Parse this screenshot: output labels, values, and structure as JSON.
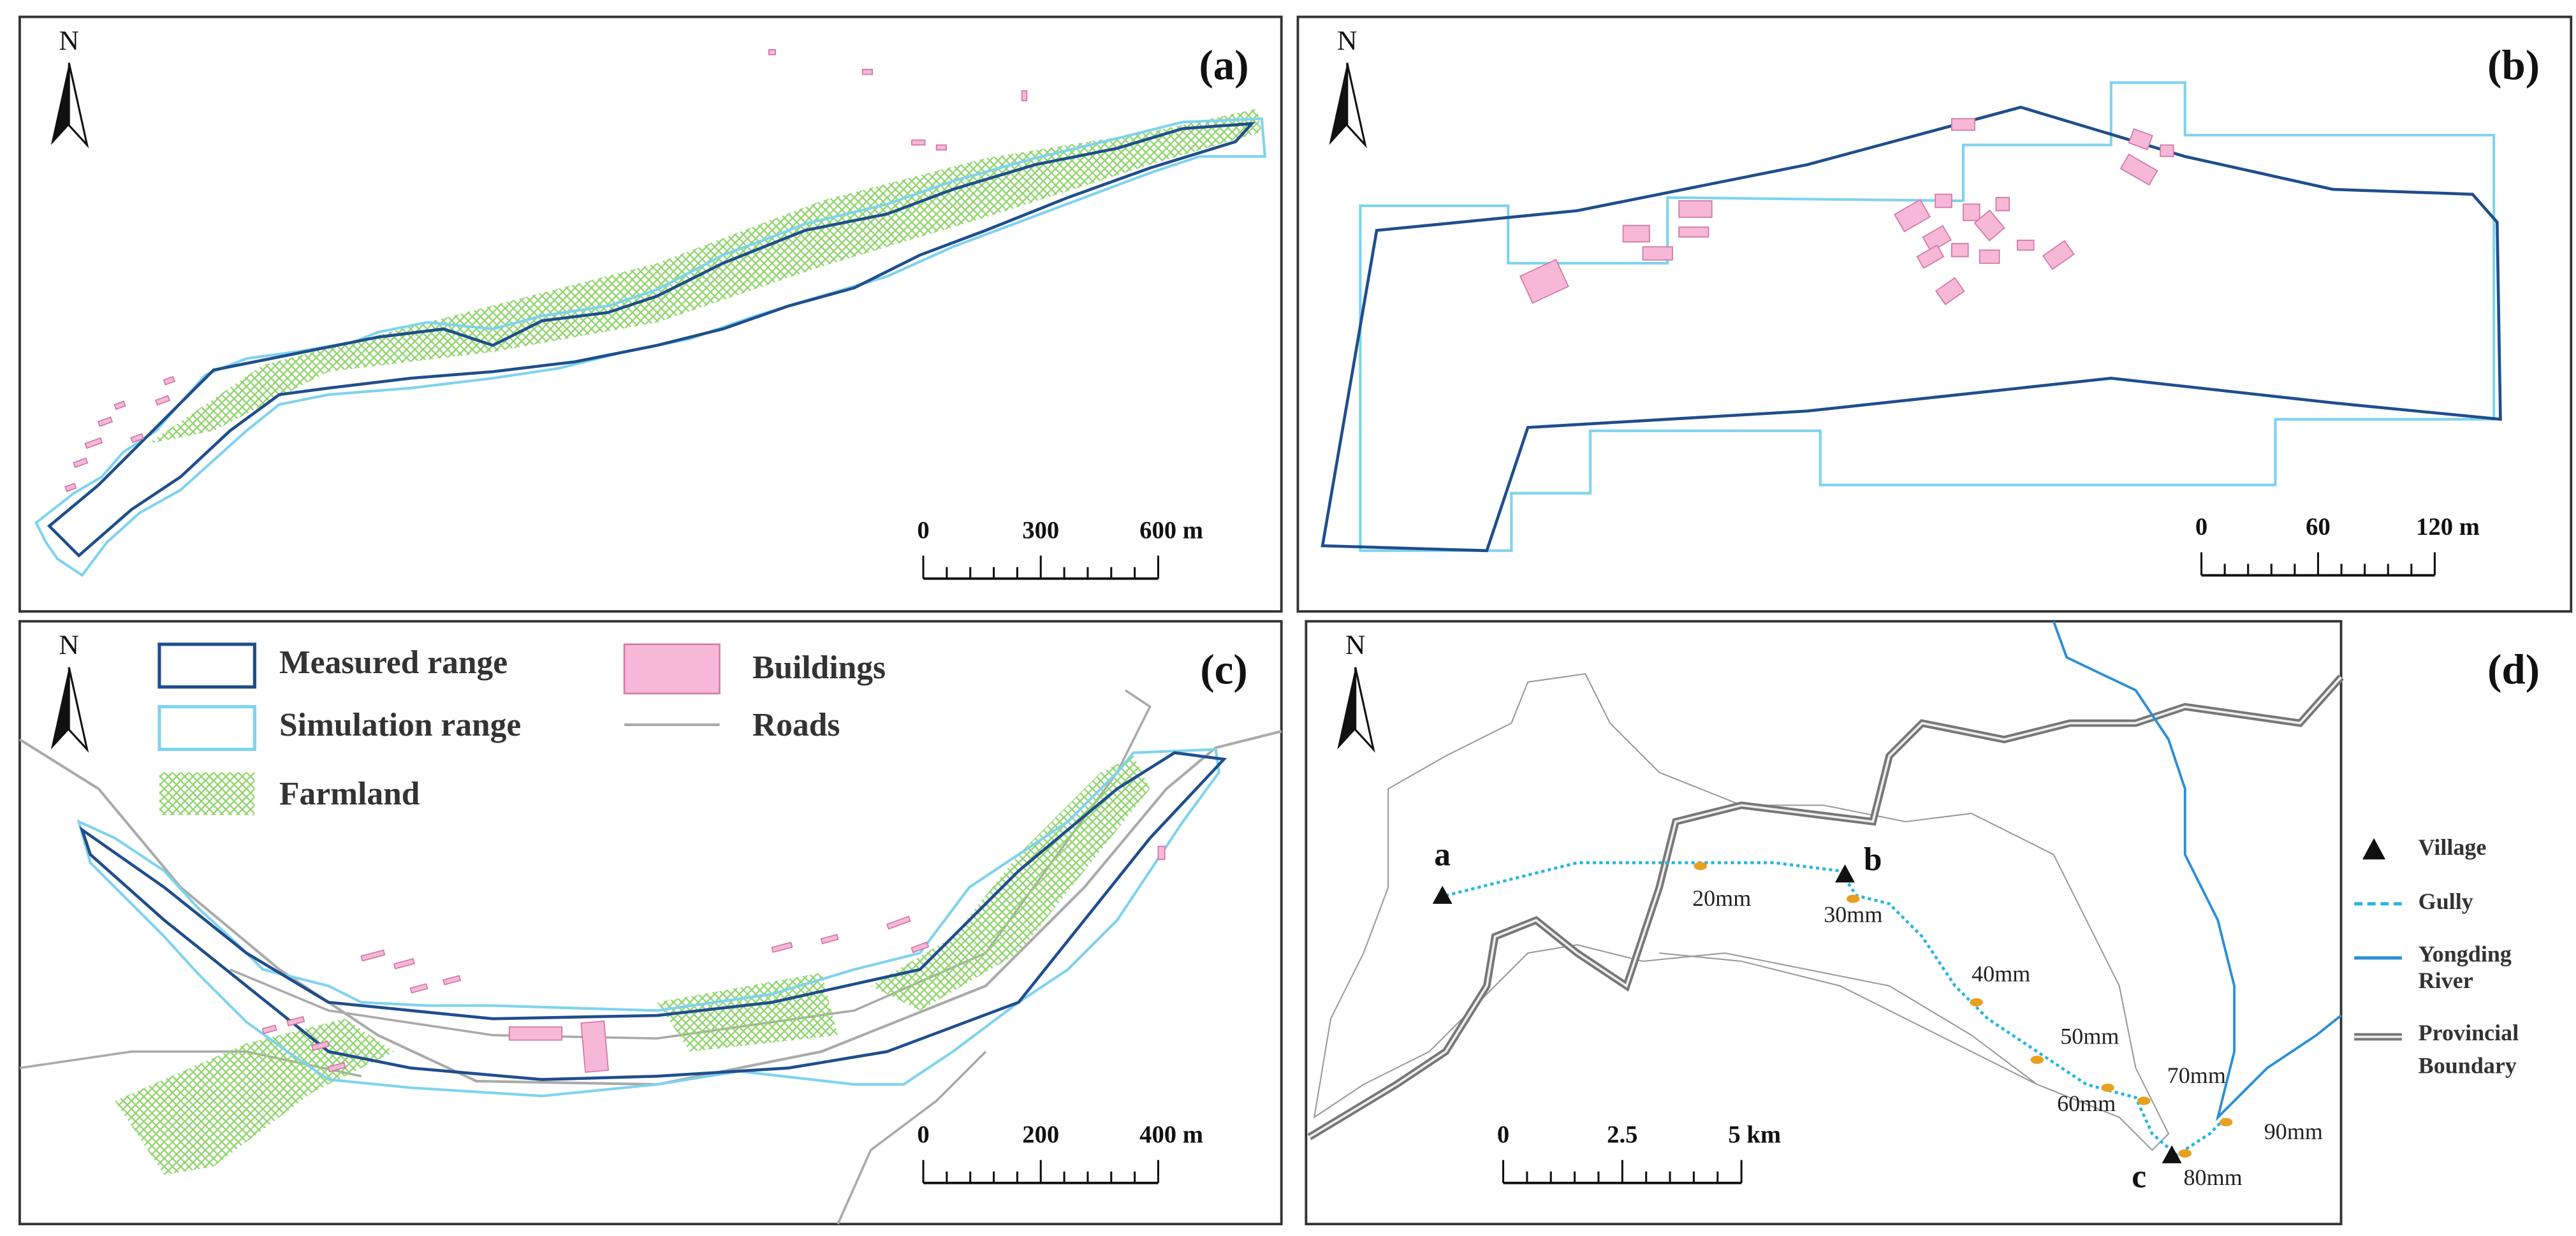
{
  "panels": [
    {
      "label": "(a)",
      "north": "N",
      "scale": [
        "0",
        "300",
        "600 m"
      ]
    },
    {
      "label": "(b)",
      "north": "N",
      "scale": [
        "0",
        "60",
        "120 m"
      ]
    },
    {
      "label": "(c)",
      "north": "N",
      "scale": [
        "0",
        "200",
        "400 m"
      ]
    },
    {
      "label": "(d)",
      "north": "N",
      "scale": [
        "0",
        "2.5",
        "5 km"
      ]
    }
  ],
  "legend_c": [
    "Measured range",
    "Simulation range",
    "Farmland",
    "Buildings",
    "Roads"
  ],
  "map_d": {
    "villages": [
      "a",
      "b",
      "c"
    ],
    "rainfall": [
      "20mm",
      "30mm",
      "40mm",
      "50mm",
      "60mm",
      "70mm",
      "80mm",
      "90mm"
    ]
  },
  "legend_d": [
    [
      "Village"
    ],
    [
      "Gully"
    ],
    [
      "Yongding",
      "River"
    ],
    [
      "Provincial",
      "Boundary"
    ]
  ]
}
